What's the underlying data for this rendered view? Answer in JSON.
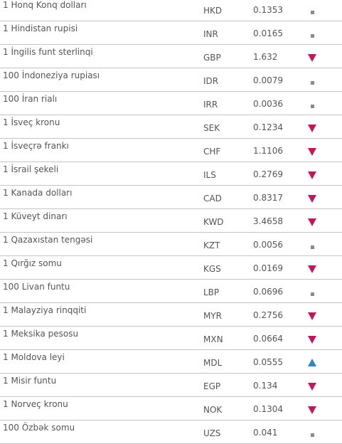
{
  "colors": {
    "down": "#c2185b",
    "up": "#2f86c7",
    "neutral": "#8a8a8a",
    "text": "#555555",
    "divider": "#c4c4c4"
  },
  "rows": [
    {
      "name": "1 Honq Konq dolları",
      "code": "HKD",
      "rate": "0.1353",
      "trend": "neutral",
      "icon": "square-icon"
    },
    {
      "name": "1 Hindistan rupisi",
      "code": "INR",
      "rate": "0.0165",
      "trend": "neutral",
      "icon": "square-icon"
    },
    {
      "name": "1 İngilis funt sterlinqi",
      "code": "GBP",
      "rate": "1.632",
      "trend": "down",
      "icon": "triangle-down-icon"
    },
    {
      "name": "100 İndoneziya rupiası",
      "code": "IDR",
      "rate": "0.0079",
      "trend": "neutral",
      "icon": "square-icon"
    },
    {
      "name": "100 İran rialı",
      "code": "IRR",
      "rate": "0.0036",
      "trend": "neutral",
      "icon": "square-icon"
    },
    {
      "name": "1 İsveç kronu",
      "code": "SEK",
      "rate": "0.1234",
      "trend": "down",
      "icon": "triangle-down-icon"
    },
    {
      "name": "1 İsveçrə frankı",
      "code": "CHF",
      "rate": "1.1106",
      "trend": "down",
      "icon": "triangle-down-icon"
    },
    {
      "name": "1 İsrail şekeli",
      "code": "ILS",
      "rate": "0.2769",
      "trend": "down",
      "icon": "triangle-down-icon"
    },
    {
      "name": "1 Kanada dolları",
      "code": "CAD",
      "rate": "0.8317",
      "trend": "down",
      "icon": "triangle-down-icon"
    },
    {
      "name": "1 Küveyt dinarı",
      "code": "KWD",
      "rate": "3.4658",
      "trend": "down",
      "icon": "triangle-down-icon"
    },
    {
      "name": "1 Qazaxıstan tengəsi",
      "code": "KZT",
      "rate": "0.0056",
      "trend": "neutral",
      "icon": "square-icon"
    },
    {
      "name": "1 Qırğız somu",
      "code": "KGS",
      "rate": "0.0169",
      "trend": "down",
      "icon": "triangle-down-icon"
    },
    {
      "name": "100 Livan funtu",
      "code": "LBP",
      "rate": "0.0696",
      "trend": "neutral",
      "icon": "square-icon"
    },
    {
      "name": "1 Malayziya rinqqiti",
      "code": "MYR",
      "rate": "0.2756",
      "trend": "down",
      "icon": "triangle-down-icon"
    },
    {
      "name": "1 Meksika pesosu",
      "code": "MXN",
      "rate": "0.0664",
      "trend": "down",
      "icon": "triangle-down-icon"
    },
    {
      "name": "1 Moldova leyi",
      "code": "MDL",
      "rate": "0.0555",
      "trend": "up",
      "icon": "triangle-up-icon"
    },
    {
      "name": "1 Misir funtu",
      "code": "EGP",
      "rate": "0.134",
      "trend": "down",
      "icon": "triangle-down-icon"
    },
    {
      "name": "1 Norveç kronu",
      "code": "NOK",
      "rate": "0.1304",
      "trend": "down",
      "icon": "triangle-down-icon"
    },
    {
      "name": "100 Özbək somu",
      "code": "UZS",
      "rate": "0.041",
      "trend": "neutral",
      "icon": "square-icon"
    }
  ]
}
